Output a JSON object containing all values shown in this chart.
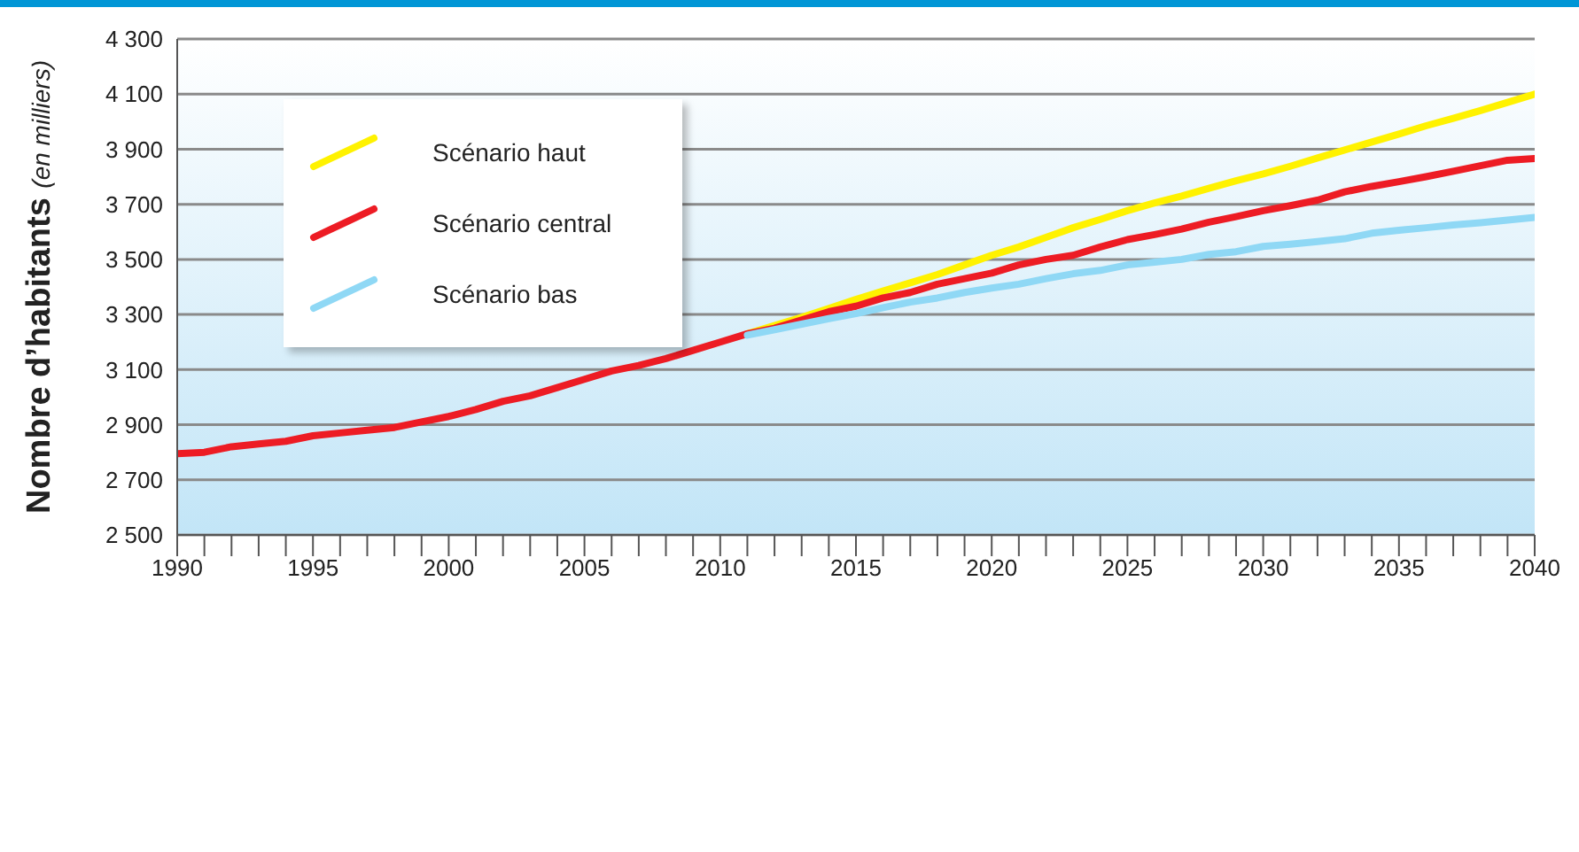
{
  "chart_data": {
    "type": "line",
    "ylabel": "Nombre d’habitants (en milliers)",
    "x": [
      1990,
      1991,
      1992,
      1993,
      1994,
      1995,
      1996,
      1997,
      1998,
      1999,
      2000,
      2001,
      2002,
      2003,
      2004,
      2005,
      2006,
      2007,
      2008,
      2009,
      2010,
      2011,
      2012,
      2013,
      2014,
      2015,
      2016,
      2017,
      2018,
      2019,
      2020,
      2021,
      2022,
      2023,
      2024,
      2025,
      2026,
      2027,
      2028,
      2029,
      2030,
      2031,
      2032,
      2033,
      2034,
      2035,
      2036,
      2037,
      2038,
      2039,
      2040
    ],
    "series": [
      {
        "name": "Scénario haut",
        "color": "#fff200",
        "values": [
          null,
          null,
          null,
          null,
          null,
          null,
          null,
          null,
          null,
          null,
          null,
          null,
          null,
          null,
          null,
          null,
          null,
          null,
          null,
          null,
          null,
          3230,
          3260,
          3290,
          3322,
          3355,
          3385,
          3415,
          3445,
          3480,
          3515,
          3545,
          3580,
          3615,
          3645,
          3677,
          3705,
          3730,
          3758,
          3785,
          3810,
          3838,
          3868,
          3897,
          3926,
          3955,
          3985,
          4012,
          4040,
          4070,
          4100
        ]
      },
      {
        "name": "Scénario central",
        "color": "#ed1c24",
        "values": [
          2795,
          2800,
          2820,
          2830,
          2840,
          2860,
          2870,
          2880,
          2890,
          2910,
          2930,
          2955,
          2985,
          3005,
          3035,
          3065,
          3095,
          3115,
          3140,
          3170,
          3200,
          3230,
          3250,
          3280,
          3310,
          3330,
          3360,
          3380,
          3410,
          3430,
          3450,
          3480,
          3500,
          3515,
          3545,
          3572,
          3590,
          3610,
          3635,
          3655,
          3677,
          3695,
          3715,
          3745,
          3765,
          3782,
          3800,
          3820,
          3840,
          3860,
          3866
        ]
      },
      {
        "name": "Scénario bas",
        "color": "#8fd8f5",
        "values": [
          null,
          null,
          null,
          null,
          null,
          null,
          null,
          null,
          null,
          null,
          null,
          null,
          null,
          null,
          null,
          null,
          null,
          null,
          null,
          null,
          null,
          3225,
          3245,
          3265,
          3285,
          3303,
          3325,
          3345,
          3360,
          3380,
          3396,
          3410,
          3430,
          3448,
          3460,
          3480,
          3490,
          3500,
          3518,
          3528,
          3547,
          3555,
          3565,
          3575,
          3595,
          3606,
          3615,
          3625,
          3633,
          3643,
          3652
        ]
      }
    ],
    "xlim": [
      1990,
      2040
    ],
    "xticks": [
      1990,
      {
        "value": 1991,
        "label": null
      },
      {
        "value": 1992,
        "label": null
      },
      {
        "value": 1993,
        "label": null
      },
      {
        "value": 1994,
        "label": null
      },
      1995,
      {
        "value": 1996,
        "label": null
      },
      {
        "value": 1997,
        "label": null
      },
      {
        "value": 1998,
        "label": null
      },
      {
        "value": 1999,
        "label": null
      },
      2000,
      {
        "value": 2001,
        "label": null
      },
      {
        "value": 2002,
        "label": null
      },
      {
        "value": 2003,
        "label": null
      },
      {
        "value": 2004,
        "label": null
      },
      2005,
      {
        "value": 2006,
        "label": null
      },
      {
        "value": 2007,
        "label": null
      },
      {
        "value": 2008,
        "label": null
      },
      {
        "value": 2009,
        "label": null
      },
      2010,
      {
        "value": 2011,
        "label": null
      },
      {
        "value": 2012,
        "label": null
      },
      {
        "value": 2013,
        "label": null
      },
      {
        "value": 2014,
        "label": null
      },
      2015,
      {
        "value": 2016,
        "label": null
      },
      {
        "value": 2017,
        "label": null
      },
      {
        "value": 2018,
        "label": null
      },
      {
        "value": 2019,
        "label": null
      },
      2020,
      {
        "value": 2021,
        "label": null
      },
      {
        "value": 2022,
        "label": null
      },
      {
        "value": 2023,
        "label": null
      },
      {
        "value": 2024,
        "label": null
      },
      2025,
      {
        "value": 2026,
        "label": null
      },
      {
        "value": 2027,
        "label": null
      },
      {
        "value": 2028,
        "label": null
      },
      {
        "value": 2029,
        "label": null
      },
      2030,
      {
        "value": 2031,
        "label": null
      },
      {
        "value": 2032,
        "label": null
      },
      {
        "value": 2033,
        "label": null
      },
      {
        "value": 2034,
        "label": null
      },
      2035,
      {
        "value": 2036,
        "label": null
      },
      {
        "value": 2037,
        "label": null
      },
      {
        "value": 2038,
        "label": null
      },
      {
        "value": 2039,
        "label": null
      },
      2040
    ],
    "ylim": [
      2500,
      4300
    ],
    "yticks": [
      {
        "value": 2500,
        "label": "2 500"
      },
      {
        "value": 2700,
        "label": "2 700"
      },
      {
        "value": 2900,
        "label": "2 900"
      },
      {
        "value": 3100,
        "label": "3 100"
      },
      {
        "value": 3300,
        "label": "3 300"
      },
      {
        "value": 3500,
        "label": "3 500"
      },
      {
        "value": 3700,
        "label": "3 700"
      },
      {
        "value": 3900,
        "label": "3 900"
      },
      {
        "value": 4100,
        "label": "4 100"
      },
      {
        "value": 4300,
        "label": "4 300"
      }
    ],
    "grid": "y",
    "legend": "top left",
    "marker": "none",
    "line_style": "solid"
  }
}
